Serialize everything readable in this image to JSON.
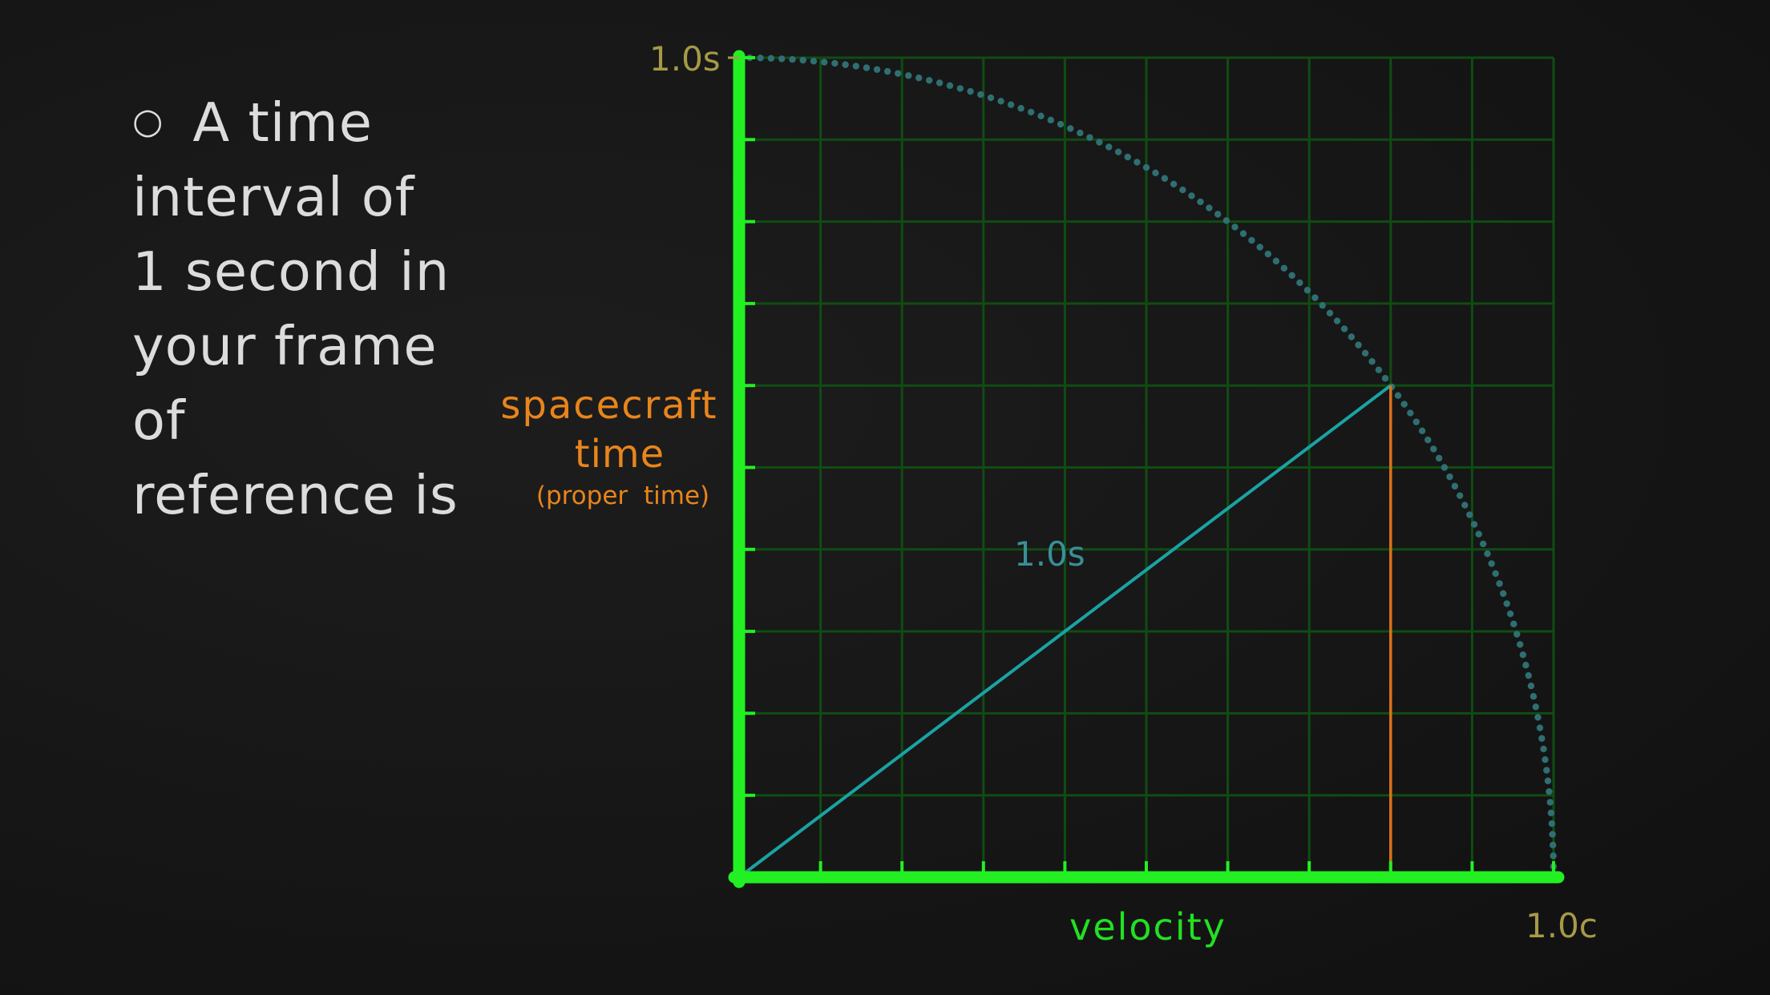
{
  "slide": {
    "bullet_symbol": "○",
    "bullet_lines": [
      "A time",
      "interval of",
      "1 second in",
      "your frame",
      "of",
      "reference is"
    ]
  },
  "chart_data": {
    "type": "line",
    "xlabel": "velocity",
    "ylabel_main": "spacecraft",
    "ylabel_line2": "time",
    "ylabel_sub": "(proper time)",
    "x_end_label": "1.0c",
    "y_end_label": "1.0s",
    "xlim": [
      0,
      1
    ],
    "ylim": [
      0,
      1
    ],
    "grid": true,
    "grid_divisions": 10,
    "series": [
      {
        "type": "arc",
        "description_key": "quarter-circle",
        "equation_points": "y = sqrt(1 - x^2)",
        "x_range": [
          0,
          1
        ]
      }
    ],
    "radius_line": {
      "from": [
        0,
        0
      ],
      "to": [
        0.8,
        0.6
      ],
      "label": "1.0s"
    },
    "drop_line": {
      "from": [
        0.8,
        0.6
      ],
      "to": [
        0.8,
        0
      ]
    },
    "colors": {
      "axis": "#22f022",
      "grid": "#0f4d12",
      "arc": "#2f6f72",
      "radius": "#1aa3a3",
      "drop": "#d8731a",
      "end_labels": "#a59a47",
      "radius_label": "#3a8f97",
      "orange_label": "#e8851c",
      "xlabel": "#22e022"
    }
  }
}
